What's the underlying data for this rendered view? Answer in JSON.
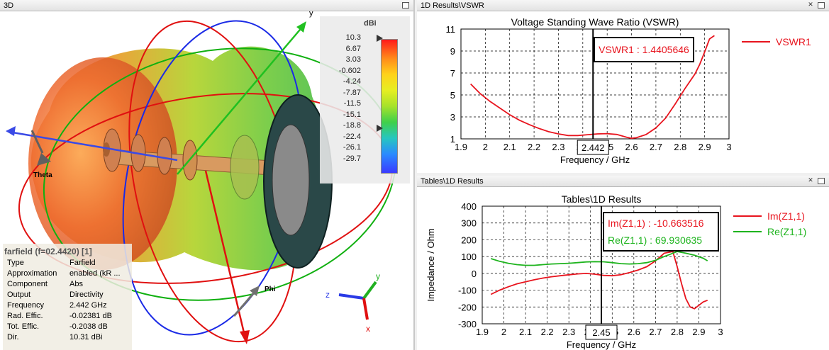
{
  "panels": {
    "p3d_title": "3D",
    "vswr_title": "1D Results\\VSWR",
    "tables_title": "Tables\\1D Results"
  },
  "legend3d": {
    "unit": "dBi",
    "values": [
      "10.3",
      "6.67",
      "3.03",
      "-0.602",
      "-4.24",
      "-7.87",
      "-11.5",
      "-15.1",
      "-18.8",
      "-22.4",
      "-26.1",
      "-29.7"
    ]
  },
  "axes3d": {
    "theta": "Theta",
    "phi": "Phi",
    "x": "x",
    "y": "y",
    "z": "z"
  },
  "farfield": {
    "title": "farfield (f=02.4420) [1]",
    "rows": [
      {
        "k": "Type",
        "v": "Farfield"
      },
      {
        "k": "Approximation",
        "v": "enabled (kR ..."
      },
      {
        "k": "Component",
        "v": "Abs"
      },
      {
        "k": "Output",
        "v": "Directivity"
      },
      {
        "k": "Frequency",
        "v": "2.442 GHz"
      },
      {
        "k": "Rad. Effic.",
        "v": "-0.02381 dB"
      },
      {
        "k": "Tot. Effic.",
        "v": "-0.2038 dB"
      },
      {
        "k": "Dir.",
        "v": "10.31 dBi"
      }
    ]
  },
  "chart_data": [
    {
      "type": "line",
      "title": "Voltage Standing Wave Ratio (VSWR)",
      "xlabel": "Frequency / GHz",
      "ylabel": "",
      "xlim": [
        1.9,
        3.0
      ],
      "ylim": [
        1,
        11
      ],
      "xticks": [
        "1.9",
        "2",
        "2.1",
        "2.2",
        "2.3",
        "2.4",
        "2.5",
        "2.6",
        "2.7",
        "2.8",
        "2.9",
        "3"
      ],
      "yticks": [
        "1",
        "3",
        "5",
        "7",
        "9",
        "11"
      ],
      "marker_x": 2.442,
      "marker_label": "2.442",
      "annotation": "VSWR1 : 1.4405646",
      "grid": true,
      "legend_position": "right",
      "series": [
        {
          "name": "VSWR1",
          "color": "#e8141e",
          "x": [
            1.94,
            1.98,
            2.02,
            2.06,
            2.1,
            2.14,
            2.18,
            2.22,
            2.26,
            2.3,
            2.34,
            2.38,
            2.42,
            2.46,
            2.5,
            2.54,
            2.58,
            2.6,
            2.62,
            2.66,
            2.7,
            2.74,
            2.78,
            2.82,
            2.86,
            2.88,
            2.9,
            2.92,
            2.94
          ],
          "y": [
            6.0,
            5.1,
            4.4,
            3.8,
            3.2,
            2.7,
            2.3,
            1.95,
            1.65,
            1.45,
            1.3,
            1.3,
            1.38,
            1.45,
            1.48,
            1.4,
            1.15,
            1.05,
            1.1,
            1.4,
            2.0,
            2.9,
            4.2,
            5.6,
            6.9,
            7.8,
            8.9,
            10.1,
            10.4
          ]
        }
      ]
    },
    {
      "type": "line",
      "title": "Tables\\1D Results",
      "xlabel": "Frequency / GHz",
      "ylabel": "Impedance / Ohm",
      "xlim": [
        1.9,
        3.0
      ],
      "ylim": [
        -300,
        400
      ],
      "xticks": [
        "1.9",
        "2",
        "2.1",
        "2.2",
        "2.3",
        "2.4",
        "2.5",
        "2.6",
        "2.7",
        "2.8",
        "2.9",
        "3"
      ],
      "yticks": [
        "400",
        "300",
        "200",
        "100",
        "0",
        "-100",
        "-200",
        "-300"
      ],
      "marker_x": 2.45,
      "marker_label": "2.45",
      "annotations": [
        "Im(Z1,1) : -10.663516",
        "Re(Z1,1) : 69.930635"
      ],
      "grid": true,
      "legend_position": "right",
      "series": [
        {
          "name": "Im(Z1,1)",
          "color": "#e8141e",
          "x": [
            1.94,
            1.98,
            2.02,
            2.06,
            2.1,
            2.14,
            2.18,
            2.22,
            2.26,
            2.3,
            2.34,
            2.38,
            2.42,
            2.46,
            2.5,
            2.54,
            2.58,
            2.62,
            2.66,
            2.7,
            2.74,
            2.78,
            2.8,
            2.82,
            2.84,
            2.86,
            2.88,
            2.9,
            2.92,
            2.94
          ],
          "y": [
            -125,
            -100,
            -80,
            -62,
            -50,
            -38,
            -28,
            -20,
            -14,
            -8,
            -3,
            0,
            -5,
            -12,
            -14,
            -8,
            5,
            20,
            40,
            75,
            120,
            130,
            40,
            -60,
            -150,
            -200,
            -210,
            -190,
            -170,
            -160
          ]
        },
        {
          "name": "Re(Z1,1)",
          "color": "#1eb41e",
          "x": [
            1.94,
            1.98,
            2.02,
            2.06,
            2.1,
            2.14,
            2.18,
            2.22,
            2.26,
            2.3,
            2.34,
            2.38,
            2.42,
            2.46,
            2.5,
            2.54,
            2.58,
            2.62,
            2.66,
            2.7,
            2.74,
            2.76,
            2.8,
            2.84,
            2.88,
            2.92,
            2.94
          ],
          "y": [
            88,
            72,
            60,
            52,
            48,
            48,
            52,
            56,
            58,
            60,
            64,
            68,
            70,
            69,
            64,
            58,
            56,
            58,
            64,
            78,
            100,
            110,
            130,
            120,
            108,
            90,
            75
          ]
        }
      ]
    }
  ]
}
